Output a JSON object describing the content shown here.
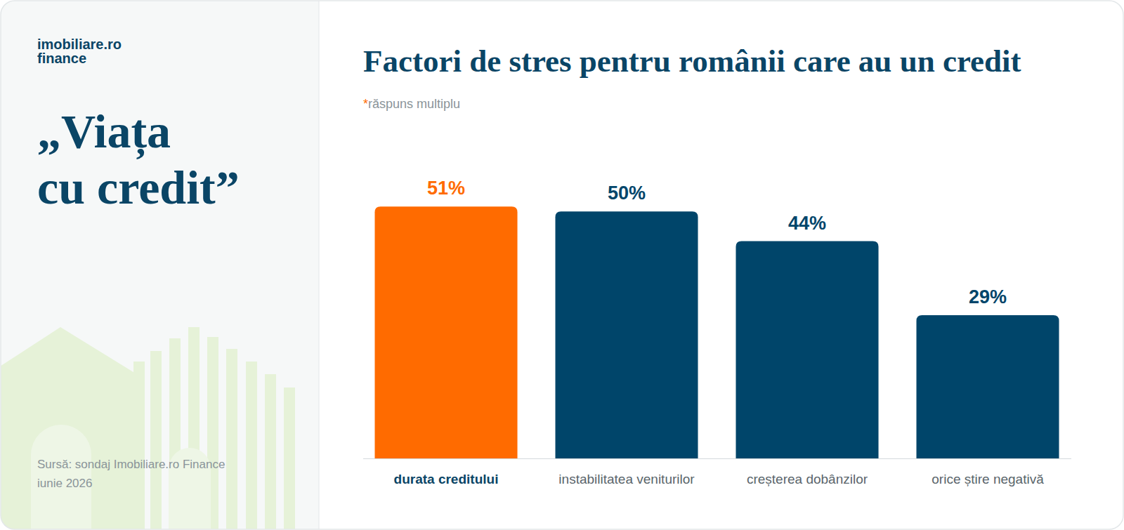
{
  "page": {
    "logo": [
      "imobiliare.ro",
      "finance"
    ],
    "headline": [
      "„Viața",
      "cu credit”"
    ],
    "source": [
      "Sursă: sondaj Imobiliare.ro Finance",
      "iunie 2026"
    ]
  },
  "chart_data": {
    "type": "bar",
    "title": "Factori de stres pentru românii care au un credit",
    "subtitle": "*răspuns multiplu",
    "categories": [
      "durata creditului",
      "instabilitatea veniturilor",
      "creșterea dobânzilor",
      "orice știre negativă"
    ],
    "values": [
      51,
      50,
      44,
      29
    ],
    "value_labels": [
      "51%",
      "50%",
      "44%",
      "29%"
    ],
    "colors": [
      "#ff6b00",
      "#00456a",
      "#00456a",
      "#00456a"
    ],
    "ylim": [
      0,
      60
    ],
    "grid": false,
    "data_labels": true,
    "tick_labels": false
  }
}
